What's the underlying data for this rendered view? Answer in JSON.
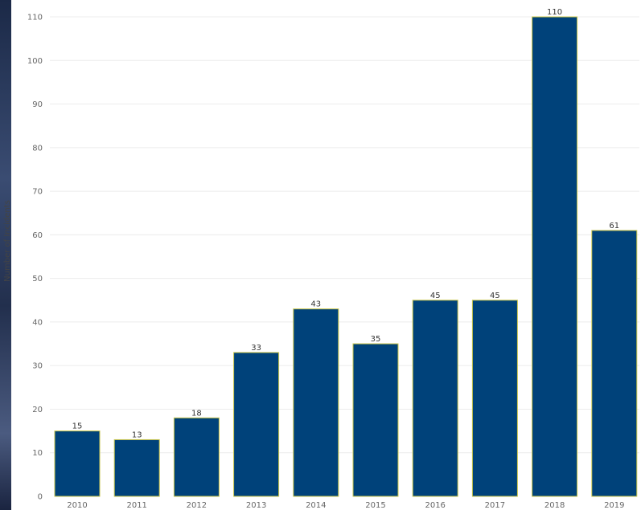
{
  "chart_data": {
    "type": "bar",
    "title": "",
    "xlabel": "",
    "ylabel": "Number of Incidents",
    "categories": [
      "2010",
      "2011",
      "2012",
      "2013",
      "2014",
      "2015",
      "2016",
      "2017",
      "2018",
      "2019"
    ],
    "values": [
      15,
      13,
      18,
      33,
      43,
      35,
      45,
      45,
      110,
      61
    ],
    "ylim": [
      0,
      110
    ],
    "yticks": [
      0,
      10,
      20,
      30,
      40,
      50,
      60,
      70,
      80,
      90,
      100,
      110
    ],
    "grid": true,
    "bar_color": "#00427a",
    "bar_edge_color": "#c9c54a",
    "data_labels": true
  }
}
